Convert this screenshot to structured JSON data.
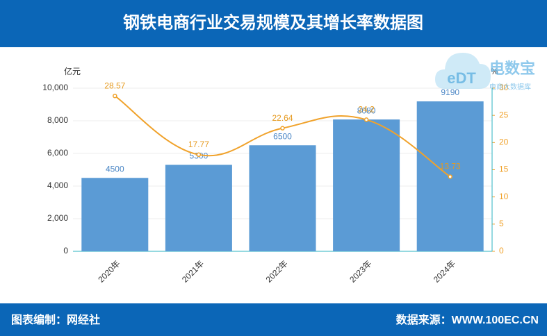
{
  "chart_data": {
    "type": "bar",
    "title": "钢铁电商行业交易规模及其增长率数据图",
    "categories": [
      "2020年",
      "2021年",
      "2022年",
      "2023年",
      "2024年"
    ],
    "series": [
      {
        "color": "#5b9bd5",
        "values": [
          4500,
          5300,
          6500,
          8080,
          9190
        ]
      },
      {
        "type": "line",
        "axis": "y2",
        "color": "#f0a22b",
        "values": [
          28.57,
          17.77,
          22.64,
          24.2,
          13.73
        ]
      }
    ],
    "y_label": "亿元",
    "y2_label": "%",
    "ylim": [
      0,
      10000
    ],
    "yticks": [
      0,
      {
        "value": 2000,
        "label": "2,000"
      },
      {
        "value": 4000,
        "label": "4,000"
      },
      {
        "value": 6000,
        "label": "6,000"
      },
      {
        "value": 8000,
        "label": "8,000"
      },
      {
        "value": 10000,
        "label": "10,000"
      }
    ],
    "y2lim": [
      0,
      30
    ],
    "y2ticks": [
      0,
      5,
      10,
      15,
      20,
      25,
      30
    ],
    "grid": true
  },
  "logo": {
    "mark": "eDT",
    "name": "电数宝",
    "tagline": "电商大数据库"
  },
  "footer": {
    "credit": "图表编制：网经社",
    "source": "数据来源：WWW.100EC.CN"
  }
}
